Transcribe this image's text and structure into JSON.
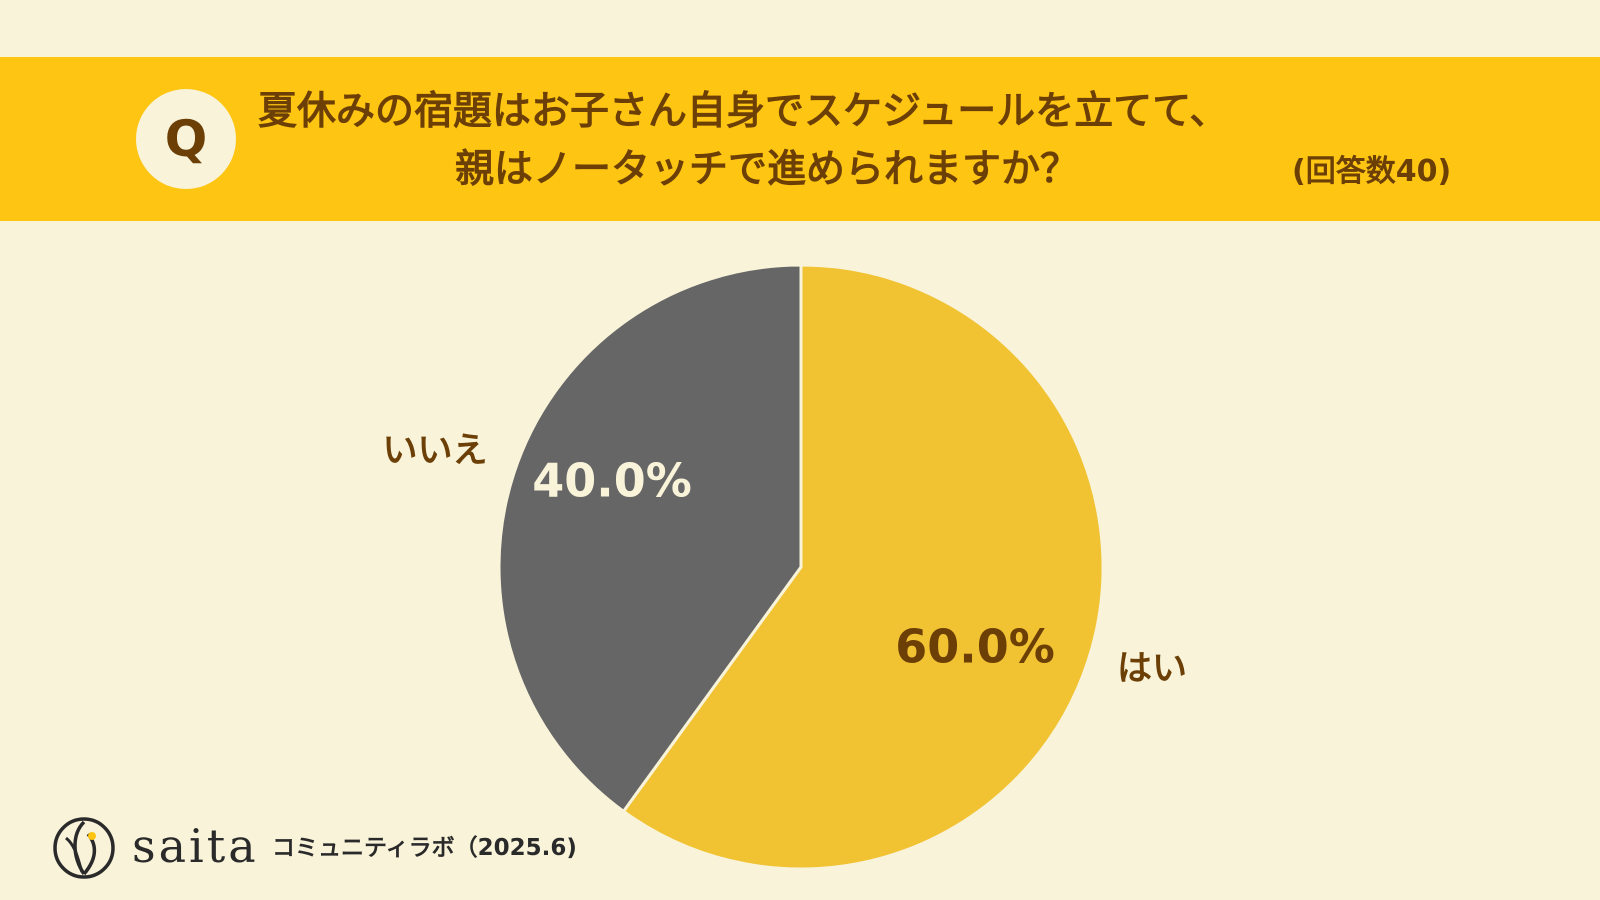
{
  "header": {
    "q_mark": "Q",
    "title_line_1": "夏休みの宿題はお子さん自身でスケジュールを立てて、",
    "title_line_2": "親はノータッチで進められますか？",
    "respondent_count": "(回答数40)"
  },
  "chart_data": {
    "type": "pie",
    "title": "夏休みの宿題はお子さん自身でスケジュールを立てて、親はノータッチで進められますか？",
    "slices": [
      {
        "category": "はい",
        "value": 60.0,
        "label": "60.0%",
        "color": "#f1c232",
        "label_color": "#6b3f06"
      },
      {
        "category": "いいえ",
        "value": 40.0,
        "label": "40.0%",
        "color": "#666666",
        "label_color": "#f8f3d9"
      }
    ],
    "start_angle_deg": 0,
    "direction": "clockwise"
  },
  "footer": {
    "logo_icon": "saita-leaf-logo-icon",
    "brand": "saita",
    "subtitle": "コミュニティラボ（2025.6)"
  },
  "colors": {
    "background": "#f8f3d9",
    "banner": "#fec512",
    "title_text": "#6b3f06"
  }
}
